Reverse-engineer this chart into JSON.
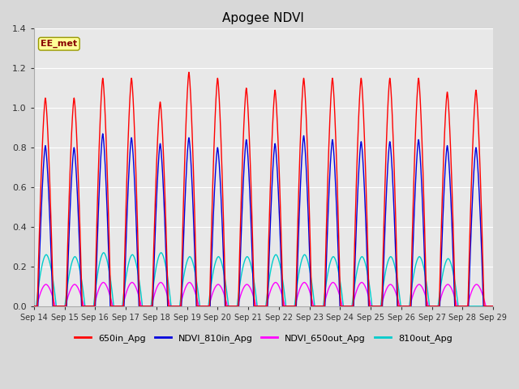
{
  "title": "Apogee NDVI",
  "annotation": "EE_met",
  "ylim": [
    0.0,
    1.4
  ],
  "yticks": [
    0.0,
    0.2,
    0.4,
    0.6,
    0.8,
    1.0,
    1.2,
    1.4
  ],
  "x_tick_labels": [
    "Sep 14",
    "Sep 15",
    "Sep 16",
    "Sep 17",
    "Sep 18",
    "Sep 19",
    "Sep 20",
    "Sep 21",
    "Sep 22",
    "Sep 23",
    "Sep 24",
    "Sep 25",
    "Sep 26",
    "Sep 27",
    "Sep 28",
    "Sep 29"
  ],
  "series_colors": {
    "650in_Apg": "#ff0000",
    "NDVI_810in_Apg": "#0000dd",
    "NDVI_650out_Apg": "#ff00ff",
    "810out_Apg": "#00cccc"
  },
  "legend_labels": [
    "650in_Apg",
    "NDVI_810in_Apg",
    "NDVI_650out_Apg",
    "810out_Apg"
  ],
  "legend_colors": [
    "#ff0000",
    "#0000dd",
    "#ff00ff",
    "#00cccc"
  ],
  "background_color": "#d8d8d8",
  "axes_bg": "#e8e8e8",
  "grid_color": "#ffffff",
  "annotation_bg": "#ffff99",
  "annotation_border": "#999900",
  "num_cycles": 16,
  "peak_650in": [
    1.05,
    1.05,
    1.15,
    1.15,
    1.03,
    1.18,
    1.15,
    1.1,
    1.09,
    1.15,
    1.15,
    1.15,
    1.15,
    1.15,
    1.08,
    1.09
  ],
  "peak_810in": [
    0.81,
    0.8,
    0.87,
    0.85,
    0.82,
    0.85,
    0.8,
    0.84,
    0.82,
    0.86,
    0.84,
    0.83,
    0.83,
    0.84,
    0.81,
    0.8
  ],
  "peak_650out": [
    0.11,
    0.11,
    0.12,
    0.12,
    0.12,
    0.12,
    0.11,
    0.11,
    0.12,
    0.12,
    0.12,
    0.12,
    0.11,
    0.11,
    0.11,
    0.11
  ],
  "peak_810out": [
    0.26,
    0.25,
    0.27,
    0.26,
    0.27,
    0.25,
    0.25,
    0.25,
    0.26,
    0.26,
    0.25,
    0.25,
    0.25,
    0.25,
    0.24,
    0.0
  ],
  "linewidth": 1.0,
  "n_days": 15,
  "pts_per_cycle": 300
}
